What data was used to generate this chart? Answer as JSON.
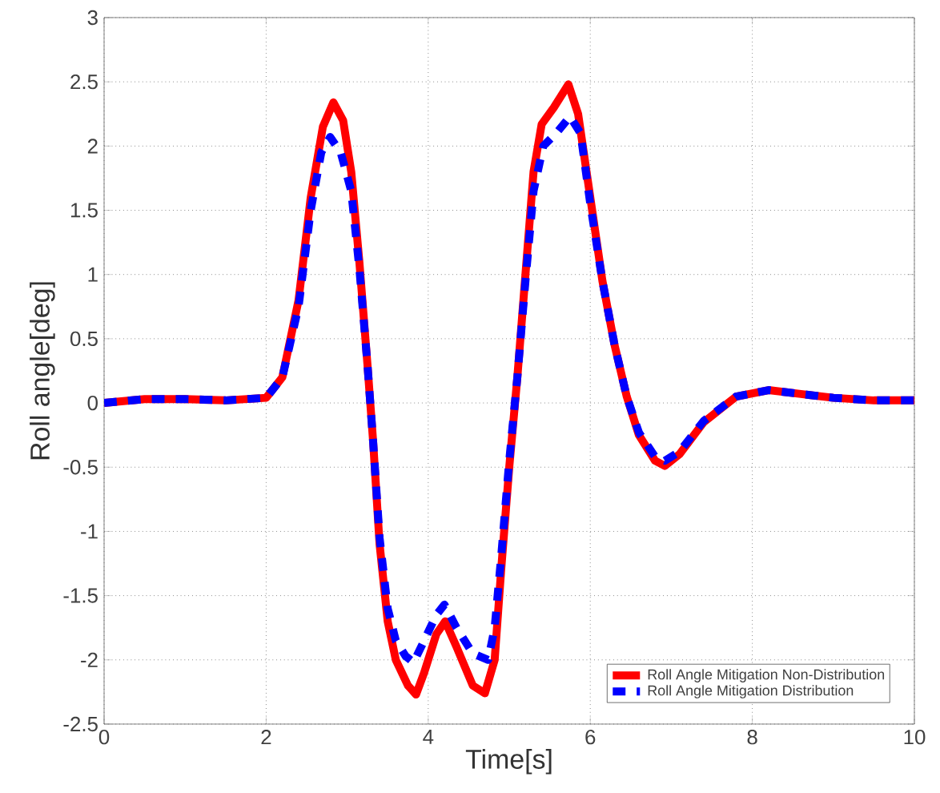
{
  "chart_data": {
    "type": "line",
    "xlabel": "Time[s]",
    "ylabel": "Roll angle[deg]",
    "xlim": [
      0,
      10
    ],
    "ylim": [
      -2.5,
      3
    ],
    "xticks": [
      0,
      2,
      4,
      6,
      8,
      10
    ],
    "yticks": [
      -2.5,
      -2,
      -1.5,
      -1,
      -0.5,
      0,
      0.5,
      1,
      1.5,
      2,
      2.5,
      3
    ],
    "grid": true,
    "legend": "bottom right",
    "marker": "none",
    "series": [
      {
        "name": "Roll Angle Mitigation Non-Distribution",
        "color": "#ff0000",
        "line_style": "solid",
        "x": [
          0,
          0.5,
          1,
          1.5,
          2,
          2.2,
          2.4,
          2.55,
          2.7,
          2.83,
          2.95,
          3.05,
          3.15,
          3.25,
          3.32,
          3.4,
          3.5,
          3.6,
          3.75,
          3.85,
          3.95,
          4.1,
          4.21,
          4.35,
          4.55,
          4.7,
          4.82,
          4.9,
          5.0,
          5.1,
          5.2,
          5.3,
          5.4,
          5.55,
          5.73,
          5.85,
          6.0,
          6.15,
          6.3,
          6.45,
          6.6,
          6.8,
          6.92,
          7.1,
          7.4,
          7.8,
          8.2,
          8.6,
          9,
          9.5,
          10
        ],
        "values": [
          0,
          0.03,
          0.03,
          0.02,
          0.04,
          0.2,
          0.8,
          1.6,
          2.15,
          2.34,
          2.2,
          1.8,
          1.1,
          0.3,
          -0.3,
          -1.1,
          -1.7,
          -2.0,
          -2.2,
          -2.27,
          -2.1,
          -1.8,
          -1.7,
          -1.9,
          -2.2,
          -2.26,
          -2.0,
          -1.3,
          -0.5,
          0.2,
          1.0,
          1.8,
          2.17,
          2.3,
          2.48,
          2.25,
          1.6,
          0.95,
          0.45,
          0.05,
          -0.25,
          -0.45,
          -0.49,
          -0.4,
          -0.15,
          0.05,
          0.1,
          0.07,
          0.04,
          0.02,
          0.02
        ]
      },
      {
        "name": "Roll Angle Mitigation Distribution",
        "color": "#0000ff",
        "line_style": "dashed",
        "x": [
          0,
          0.5,
          1,
          1.5,
          2,
          2.2,
          2.4,
          2.55,
          2.68,
          2.79,
          2.92,
          3.05,
          3.15,
          3.25,
          3.32,
          3.4,
          3.5,
          3.6,
          3.72,
          3.82,
          3.95,
          4.1,
          4.2,
          4.35,
          4.55,
          4.74,
          4.82,
          4.9,
          5.0,
          5.1,
          5.2,
          5.3,
          5.42,
          5.58,
          5.75,
          5.88,
          6.0,
          6.15,
          6.3,
          6.45,
          6.6,
          6.8,
          6.92,
          7.1,
          7.4,
          7.8,
          8.2,
          8.6,
          9,
          9.5,
          10
        ],
        "values": [
          0,
          0.03,
          0.03,
          0.02,
          0.04,
          0.2,
          0.75,
          1.5,
          1.95,
          2.07,
          1.95,
          1.65,
          1.05,
          0.3,
          -0.3,
          -1.05,
          -1.6,
          -1.85,
          -1.97,
          -2.02,
          -1.85,
          -1.65,
          -1.57,
          -1.75,
          -1.95,
          -2.0,
          -1.75,
          -1.2,
          -0.45,
          0.2,
          0.95,
          1.65,
          2.0,
          2.1,
          2.23,
          2.1,
          1.55,
          0.95,
          0.45,
          0.05,
          -0.23,
          -0.42,
          -0.45,
          -0.38,
          -0.14,
          0.05,
          0.1,
          0.07,
          0.04,
          0.02,
          0.02
        ]
      }
    ]
  }
}
